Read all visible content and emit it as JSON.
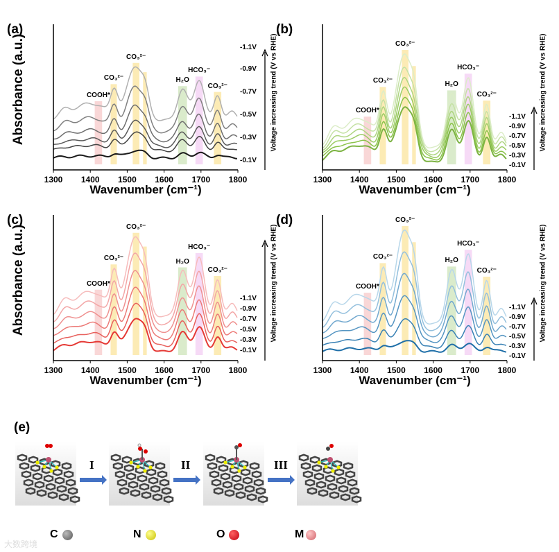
{
  "chart_data": [
    {
      "id": "a",
      "panel_label": "(a)",
      "type": "line",
      "xlabel": "Wavenumber (cm⁻¹)",
      "ylabel": "Absorbance (a.u.)",
      "xlim": [
        1300,
        1800
      ],
      "ylim": [
        0,
        10
      ],
      "xticks": [
        "1300",
        "1400",
        "1500",
        "1600",
        "1700",
        "1800"
      ],
      "trend_label": "Voltage increasing trend (V vs RHE)",
      "colors": [
        "#1a1a1a",
        "#444444",
        "#5a5a5a",
        "#6e6e6e",
        "#808080",
        "#b0b0b0"
      ],
      "series": [
        {
          "name": "-0.1V",
          "offset": 0.8,
          "scale": 0.55
        },
        {
          "name": "-0.3V",
          "offset": 1.3,
          "scale": 1.3
        },
        {
          "name": "-0.5V",
          "offset": 1.6,
          "scale": 1.8
        },
        {
          "name": "-0.7V",
          "offset": 2.0,
          "scale": 2.5
        },
        {
          "name": "-0.9V",
          "offset": 2.6,
          "scale": 3.3
        },
        {
          "name": "-1.1V",
          "offset": 3.4,
          "scale": 3.9
        }
      ]
    },
    {
      "id": "b",
      "panel_label": "(b)",
      "type": "line",
      "xlabel": "Wavenumber (cm⁻¹)",
      "ylabel": "",
      "xlim": [
        1300,
        1800
      ],
      "ylim": [
        0,
        10
      ],
      "xticks": [
        "1300",
        "1400",
        "1500",
        "1600",
        "1700",
        "1800"
      ],
      "trend_label": "Voltage increasing trend (V vs RHE)",
      "colors": [
        "#7cb342",
        "#8bc34a",
        "#9ccc65",
        "#aed581",
        "#c5e1a5",
        "#dcedc8"
      ],
      "series": [
        {
          "name": "-0.1V",
          "offset": 0.5,
          "scale": 4.0
        },
        {
          "name": "-0.3V",
          "offset": 0.7,
          "scale": 4.4
        },
        {
          "name": "-0.5V",
          "offset": 0.9,
          "scale": 4.9
        },
        {
          "name": "-0.7V",
          "offset": 1.1,
          "scale": 5.4
        },
        {
          "name": "-0.9V",
          "offset": 1.3,
          "scale": 6.0
        },
        {
          "name": "-1.1V",
          "offset": 1.5,
          "scale": 6.8
        }
      ]
    },
    {
      "id": "c",
      "panel_label": "(c)",
      "type": "line",
      "xlabel": "Wavenumber (cm⁻¹)",
      "ylabel": "Absorbance (a.u.)",
      "xlim": [
        1300,
        1800
      ],
      "ylim": [
        0,
        10
      ],
      "xticks": [
        "1300",
        "1400",
        "1500",
        "1600",
        "1700",
        "1800"
      ],
      "trend_label": "Voltage increasing trend (V vs RHE)",
      "colors": [
        "#e53935",
        "#e8605c",
        "#ec7a77",
        "#ef9190",
        "#f3a6a6",
        "#f6bcbc"
      ],
      "series": [
        {
          "name": "-0.1V",
          "offset": 0.6,
          "scale": 2.4
        },
        {
          "name": "-0.3V",
          "offset": 1.0,
          "scale": 3.0
        },
        {
          "name": "-0.5V",
          "offset": 1.5,
          "scale": 3.6
        },
        {
          "name": "-0.7V",
          "offset": 2.0,
          "scale": 4.3
        },
        {
          "name": "-0.9V",
          "offset": 2.5,
          "scale": 5.1
        },
        {
          "name": "-1.1V",
          "offset": 3.0,
          "scale": 5.8
        }
      ]
    },
    {
      "id": "d",
      "panel_label": "(d)",
      "type": "line",
      "xlabel": "Wavenumber (cm⁻¹)",
      "ylabel": "",
      "xlim": [
        1300,
        1800
      ],
      "ylim": [
        0,
        10
      ],
      "xticks": [
        "1300",
        "1400",
        "1500",
        "1600",
        "1700",
        "1800"
      ],
      "trend_label": "Voltage increasing trend (V vs RHE)",
      "colors": [
        "#1f6fa8",
        "#3a82b5",
        "#5595c2",
        "#72a9cf",
        "#94c0dd",
        "#b8d7ea"
      ],
      "series": [
        {
          "name": "-0.1V",
          "offset": 0.6,
          "scale": 0.8
        },
        {
          "name": "-0.3V",
          "offset": 0.9,
          "scale": 2.0
        },
        {
          "name": "-0.5V",
          "offset": 1.3,
          "scale": 3.2
        },
        {
          "name": "-0.7V",
          "offset": 1.7,
          "scale": 4.4
        },
        {
          "name": "-0.9V",
          "offset": 2.1,
          "scale": 5.6
        },
        {
          "name": "-1.1V",
          "offset": 2.5,
          "scale": 6.8
        }
      ]
    }
  ],
  "model_peaks": [
    {
      "center": 1330,
      "width": 15,
      "intensity": 0.12
    },
    {
      "center": 1400,
      "width": 45,
      "intensity": 0.3
    },
    {
      "center": 1465,
      "width": 10,
      "intensity": 0.45
    },
    {
      "center": 1522,
      "width": 22,
      "intensity": 0.95
    },
    {
      "center": 1550,
      "width": 10,
      "intensity": 0.25
    },
    {
      "center": 1650,
      "width": 14,
      "intensity": 0.55
    },
    {
      "center": 1695,
      "width": 14,
      "intensity": 0.72
    },
    {
      "center": 1745,
      "width": 10,
      "intensity": 0.45
    },
    {
      "center": 1785,
      "width": 12,
      "intensity": 0.15
    }
  ],
  "bands": [
    {
      "label": "COOH*",
      "from": 1412,
      "to": 1432,
      "color": "#f8d0d0"
    },
    {
      "label": "CO₃²⁻",
      "from": 1455,
      "to": 1472,
      "color": "#fbe7a8"
    },
    {
      "label": "CO₃²⁻",
      "from": 1515,
      "to": 1533,
      "color": "#fbe7a8"
    },
    {
      "label": "",
      "from": 1543,
      "to": 1553,
      "color": "#fbe7a8"
    },
    {
      "label": "H₂O",
      "from": 1638,
      "to": 1662,
      "color": "#d3e8c2"
    },
    {
      "label": "HCO₃⁻",
      "from": 1685,
      "to": 1705,
      "color": "#f5d3f5"
    },
    {
      "label": "CO₃²⁻",
      "from": 1735,
      "to": 1755,
      "color": "#fbe7a8"
    }
  ],
  "scheme": {
    "panel_label": "(e)",
    "steps": [
      "I",
      "II",
      "III"
    ],
    "arrow_color": "#4472c4",
    "legend": [
      {
        "label": "C",
        "color": "#666666"
      },
      {
        "label": "N",
        "color": "#e8e020"
      },
      {
        "label": "O",
        "color": "#e02030"
      },
      {
        "label": "M",
        "color": "#e88a90"
      }
    ]
  },
  "watermark": "大数跨境"
}
